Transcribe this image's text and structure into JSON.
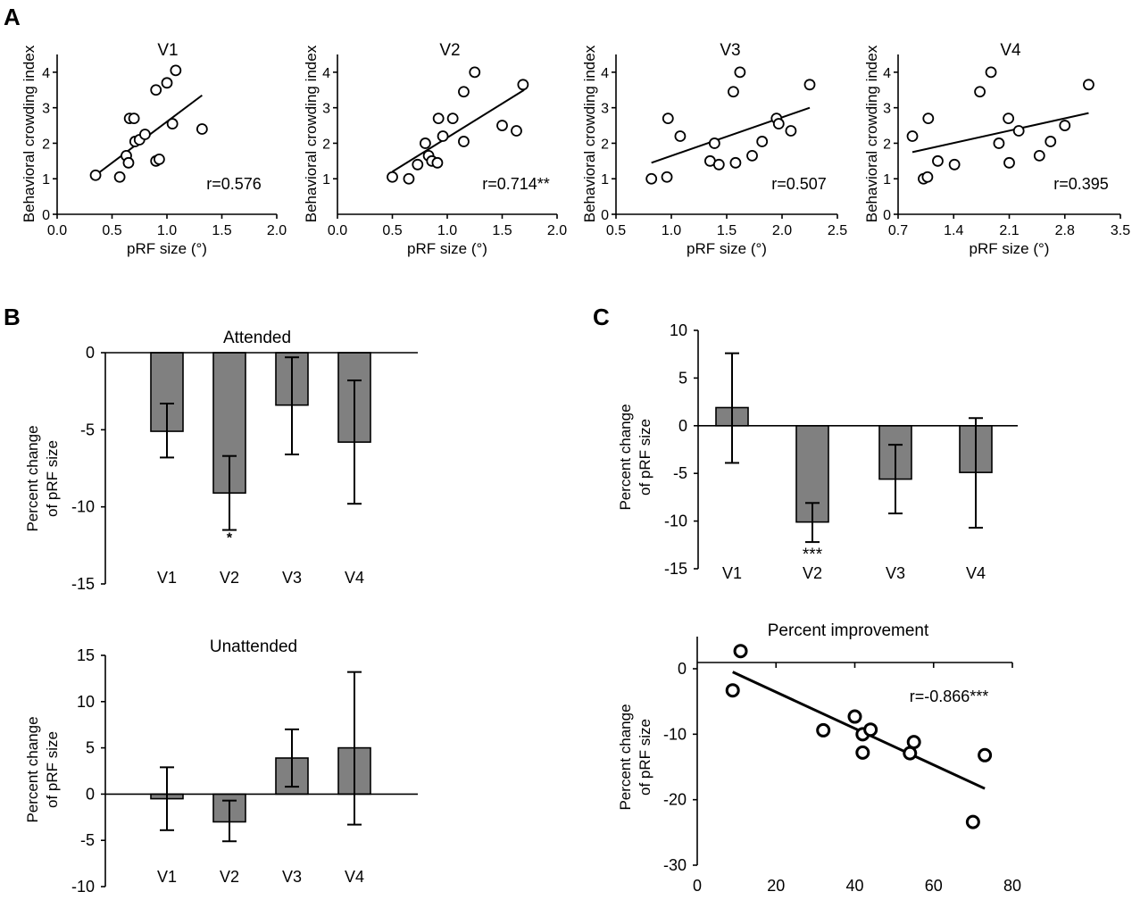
{
  "panels": [
    "A",
    "B",
    "C"
  ],
  "chart_data": [
    {
      "id": "A1",
      "type": "scatter",
      "title": "V1",
      "xlabel": "pRF size (°)",
      "ylabel": "Behavioral crowding index",
      "xlim": [
        0,
        2
      ],
      "ylim": [
        0,
        4.5
      ],
      "xticks": [
        "0.0",
        "0.5",
        "1.0",
        "1.5",
        "2.0"
      ],
      "xtickvals": [
        0,
        0.5,
        1,
        1.5,
        2
      ],
      "yticks": [
        "0",
        "1",
        "2",
        "3",
        "4"
      ],
      "ytickvals": [
        0,
        1,
        2,
        3,
        4
      ],
      "annotation": "r=0.576",
      "points": [
        [
          0.35,
          1.1
        ],
        [
          0.57,
          1.05
        ],
        [
          0.63,
          1.65
        ],
        [
          0.65,
          1.45
        ],
        [
          0.66,
          2.7
        ],
        [
          0.7,
          2.7
        ],
        [
          0.71,
          2.05
        ],
        [
          0.75,
          2.1
        ],
        [
          0.8,
          2.25
        ],
        [
          0.9,
          3.5
        ],
        [
          0.9,
          1.5
        ],
        [
          0.93,
          1.55
        ],
        [
          1.0,
          3.7
        ],
        [
          1.05,
          2.55
        ],
        [
          1.08,
          4.05
        ],
        [
          1.32,
          2.4
        ]
      ],
      "fit": [
        [
          0.35,
          1.1
        ],
        [
          1.32,
          3.35
        ]
      ]
    },
    {
      "id": "A2",
      "type": "scatter",
      "title": "V2",
      "xlabel": "pRF size (°)",
      "ylabel": "Behavioral crowding index",
      "xlim": [
        0,
        2
      ],
      "ylim": [
        0,
        4.5
      ],
      "xticks": [
        "0.0",
        "0.5",
        "1.0",
        "1.5",
        "2.0"
      ],
      "xtickvals": [
        0,
        0.5,
        1,
        1.5,
        2
      ],
      "yticks": [
        "1",
        "2",
        "3",
        "4"
      ],
      "ytickvals": [
        1,
        2,
        3,
        4
      ],
      "annotation": "r=0.714**",
      "points": [
        [
          0.5,
          1.05
        ],
        [
          0.65,
          1.0
        ],
        [
          0.73,
          1.4
        ],
        [
          0.8,
          2.0
        ],
        [
          0.83,
          1.65
        ],
        [
          0.86,
          1.5
        ],
        [
          0.91,
          1.45
        ],
        [
          0.92,
          2.7
        ],
        [
          0.96,
          2.2
        ],
        [
          1.05,
          2.7
        ],
        [
          1.15,
          2.05
        ],
        [
          1.15,
          3.45
        ],
        [
          1.25,
          4.0
        ],
        [
          1.5,
          2.5
        ],
        [
          1.63,
          2.35
        ],
        [
          1.69,
          3.65
        ]
      ],
      "fit": [
        [
          0.5,
          1.2
        ],
        [
          1.7,
          3.5
        ]
      ]
    },
    {
      "id": "A3",
      "type": "scatter",
      "title": "V3",
      "xlabel": "pRF size (°)",
      "ylabel": "Behavioral crowding index",
      "xlim": [
        0.5,
        2.5
      ],
      "ylim": [
        0,
        4.5
      ],
      "xticks": [
        "0.5",
        "1.0",
        "1.5",
        "2.0",
        "2.5"
      ],
      "xtickvals": [
        0.5,
        1,
        1.5,
        2,
        2.5
      ],
      "yticks": [
        "0",
        "1",
        "2",
        "3",
        "4"
      ],
      "ytickvals": [
        0,
        1,
        2,
        3,
        4
      ],
      "annotation": "r=0.507",
      "points": [
        [
          0.82,
          1.0
        ],
        [
          0.96,
          1.05
        ],
        [
          0.97,
          2.7
        ],
        [
          1.08,
          2.2
        ],
        [
          1.35,
          1.5
        ],
        [
          1.39,
          2.0
        ],
        [
          1.43,
          1.4
        ],
        [
          1.56,
          3.45
        ],
        [
          1.58,
          1.45
        ],
        [
          1.62,
          4.0
        ],
        [
          1.73,
          1.65
        ],
        [
          1.82,
          2.05
        ],
        [
          1.95,
          2.7
        ],
        [
          1.97,
          2.55
        ],
        [
          2.08,
          2.35
        ],
        [
          2.25,
          3.65
        ]
      ],
      "fit": [
        [
          0.82,
          1.45
        ],
        [
          2.25,
          3.0
        ]
      ]
    },
    {
      "id": "A4",
      "type": "scatter",
      "title": "V4",
      "xlabel": "pRF size (°)",
      "ylabel": "Behavioral crowding index",
      "xlim": [
        0.7,
        3.5
      ],
      "ylim": [
        0,
        4.5
      ],
      "xticks": [
        "0.7",
        "1.4",
        "2.1",
        "2.8",
        "3.5"
      ],
      "xtickvals": [
        0.7,
        1.4,
        2.1,
        2.8,
        3.5
      ],
      "yticks": [
        "0",
        "1",
        "2",
        "3",
        "4"
      ],
      "ytickvals": [
        0,
        1,
        2,
        3,
        4
      ],
      "annotation": "r=0.395",
      "points": [
        [
          0.88,
          2.2
        ],
        [
          1.02,
          1.0
        ],
        [
          1.07,
          1.05
        ],
        [
          1.08,
          2.7
        ],
        [
          1.2,
          1.5
        ],
        [
          1.41,
          1.4
        ],
        [
          1.73,
          3.45
        ],
        [
          1.87,
          4.0
        ],
        [
          1.97,
          2.0
        ],
        [
          2.09,
          2.7
        ],
        [
          2.1,
          1.45
        ],
        [
          2.22,
          2.35
        ],
        [
          2.48,
          1.65
        ],
        [
          2.62,
          2.05
        ],
        [
          2.8,
          2.5
        ],
        [
          3.1,
          3.65
        ]
      ],
      "fit": [
        [
          0.88,
          1.75
        ],
        [
          3.1,
          2.85
        ]
      ]
    },
    {
      "id": "B1",
      "type": "bar",
      "title": "Attended",
      "ylabel": "Percent change\nof pRF size",
      "categories": [
        "V1",
        "V2",
        "V3",
        "V4"
      ],
      "values": [
        -5.1,
        -9.1,
        -3.4,
        -5.8
      ],
      "err_high": [
        -3.3,
        -6.7,
        -0.3,
        -1.8
      ],
      "err_low": [
        -6.8,
        -11.5,
        -6.6,
        -9.8
      ],
      "stars": [
        "",
        "*",
        "",
        ""
      ],
      "ylim": [
        -15,
        0
      ],
      "yticks": [
        "0",
        "-5",
        "-10",
        "-15"
      ],
      "ytickvals": [
        0,
        -5,
        -10,
        -15
      ]
    },
    {
      "id": "B2",
      "type": "bar",
      "title": "Unattended",
      "ylabel": "Percent change\nof pRF size",
      "categories": [
        "V1",
        "V2",
        "V3",
        "V4"
      ],
      "values": [
        -0.5,
        -3.0,
        3.9,
        5.0
      ],
      "err_high": [
        2.9,
        -0.7,
        7.0,
        13.2
      ],
      "err_low": [
        -3.9,
        -5.1,
        0.8,
        -3.3
      ],
      "stars": [
        "",
        "",
        "",
        ""
      ],
      "ylim": [
        -10,
        15
      ],
      "yticks": [
        "15",
        "10",
        "5",
        "0",
        "-5",
        "-10"
      ],
      "ytickvals": [
        15,
        10,
        5,
        0,
        -5,
        -10
      ]
    },
    {
      "id": "C1",
      "type": "bar",
      "title": "",
      "ylabel": "Percent change\nof pRF size",
      "categories": [
        "V1",
        "V2",
        "V3",
        "V4"
      ],
      "values": [
        1.9,
        -10.1,
        -5.6,
        -4.9
      ],
      "err_high": [
        7.6,
        -8.1,
        -2.0,
        0.8
      ],
      "err_low": [
        -3.9,
        -12.2,
        -9.2,
        -10.7
      ],
      "stars": [
        "",
        "***",
        "",
        ""
      ],
      "ylim": [
        -15,
        10
      ],
      "yticks": [
        "10",
        "5",
        "0",
        "-5",
        "-10",
        "-15"
      ],
      "ytickvals": [
        10,
        5,
        0,
        -5,
        -10,
        -15
      ]
    },
    {
      "id": "C2",
      "type": "scatter",
      "title": "Percent improvement",
      "ylabel": "Percent change\nof pRF size",
      "xlim": [
        0,
        80
      ],
      "ylim": [
        -30,
        0
      ],
      "xticks": [
        "0",
        "20",
        "40",
        "60",
        "80"
      ],
      "xtickvals": [
        0,
        20,
        40,
        60,
        80
      ],
      "yticks": [
        "0",
        "-10",
        "-20",
        "-30"
      ],
      "ytickvals": [
        0,
        -10,
        -20,
        -30
      ],
      "annotation": "r=-0.866***",
      "points": [
        [
          9,
          -3.3
        ],
        [
          11,
          2.7
        ],
        [
          32,
          -9.4
        ],
        [
          40,
          -7.3
        ],
        [
          42,
          -10.0
        ],
        [
          42,
          -12.8
        ],
        [
          44,
          -9.3
        ],
        [
          54,
          -12.9
        ],
        [
          55,
          -11.2
        ],
        [
          70,
          -23.4
        ],
        [
          73,
          -13.2
        ]
      ],
      "fit": [
        [
          9,
          -0.5
        ],
        [
          73,
          -18.3
        ]
      ]
    }
  ]
}
